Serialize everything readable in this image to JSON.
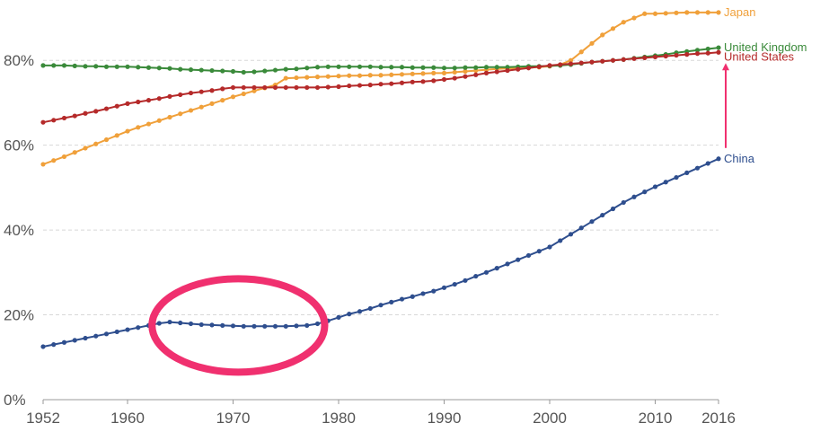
{
  "chart_data": {
    "type": "line",
    "x": [
      1952,
      1953,
      1954,
      1955,
      1956,
      1957,
      1958,
      1959,
      1960,
      1961,
      1962,
      1963,
      1964,
      1965,
      1966,
      1967,
      1968,
      1969,
      1970,
      1971,
      1972,
      1973,
      1974,
      1975,
      1976,
      1977,
      1978,
      1979,
      1980,
      1981,
      1982,
      1983,
      1984,
      1985,
      1986,
      1987,
      1988,
      1989,
      1990,
      1991,
      1992,
      1993,
      1994,
      1995,
      1996,
      1997,
      1998,
      1999,
      2000,
      2001,
      2002,
      2003,
      2004,
      2005,
      2006,
      2007,
      2008,
      2009,
      2010,
      2011,
      2012,
      2013,
      2014,
      2015,
      2016
    ],
    "x_ticks": [
      "1952",
      "1960",
      "1970",
      "1980",
      "1990",
      "2000",
      "2010",
      "2016"
    ],
    "y_ticks": [
      "0%",
      "20%",
      "40%",
      "60%",
      "80%"
    ],
    "ylim": [
      0,
      90
    ],
    "grid": "horizontal dashed",
    "series": [
      {
        "name": "Japan",
        "color": "#f0a03a",
        "values": [
          55.5,
          56.4,
          57.3,
          58.3,
          59.3,
          60.3,
          61.3,
          62.3,
          63.3,
          64.2,
          65.0,
          65.8,
          66.6,
          67.4,
          68.2,
          69.0,
          69.8,
          70.6,
          71.4,
          72.1,
          72.8,
          73.5,
          74.2,
          75.8,
          75.9,
          76.0,
          76.1,
          76.2,
          76.3,
          76.4,
          76.4,
          76.5,
          76.5,
          76.6,
          76.7,
          76.8,
          76.9,
          77.0,
          77.0,
          77.2,
          77.4,
          77.6,
          77.8,
          78.0,
          78.1,
          78.2,
          78.3,
          78.4,
          78.6,
          79.0,
          80.0,
          82.0,
          84.0,
          86.0,
          87.5,
          89.0,
          90.0,
          91.0,
          91.0,
          91.1,
          91.2,
          91.3,
          91.3,
          91.3,
          91.3
        ]
      },
      {
        "name": "United Kingdom",
        "color": "#3a8a3a",
        "values": [
          78.8,
          78.8,
          78.8,
          78.7,
          78.6,
          78.6,
          78.5,
          78.5,
          78.5,
          78.4,
          78.3,
          78.2,
          78.1,
          77.9,
          77.8,
          77.7,
          77.6,
          77.5,
          77.4,
          77.2,
          77.3,
          77.5,
          77.7,
          77.9,
          78.0,
          78.2,
          78.4,
          78.5,
          78.5,
          78.5,
          78.5,
          78.5,
          78.4,
          78.4,
          78.4,
          78.3,
          78.3,
          78.3,
          78.2,
          78.2,
          78.3,
          78.3,
          78.4,
          78.4,
          78.4,
          78.5,
          78.6,
          78.6,
          78.7,
          78.8,
          79.0,
          79.3,
          79.6,
          79.8,
          80.0,
          80.2,
          80.5,
          80.8,
          81.1,
          81.4,
          81.8,
          82.1,
          82.4,
          82.7,
          83.0
        ]
      },
      {
        "name": "United States",
        "color": "#b52a2a",
        "values": [
          65.4,
          65.9,
          66.4,
          66.9,
          67.5,
          68.0,
          68.6,
          69.2,
          69.8,
          70.2,
          70.6,
          71.0,
          71.5,
          71.9,
          72.3,
          72.6,
          72.9,
          73.3,
          73.6,
          73.6,
          73.6,
          73.6,
          73.6,
          73.6,
          73.6,
          73.6,
          73.6,
          73.7,
          73.8,
          74.0,
          74.1,
          74.2,
          74.4,
          74.5,
          74.7,
          74.9,
          75.0,
          75.2,
          75.5,
          75.8,
          76.2,
          76.6,
          77.0,
          77.3,
          77.6,
          77.9,
          78.2,
          78.5,
          78.8,
          79.0,
          79.2,
          79.4,
          79.6,
          79.8,
          80.0,
          80.2,
          80.4,
          80.6,
          80.8,
          81.0,
          81.2,
          81.4,
          81.6,
          81.7,
          81.9
        ]
      },
      {
        "name": "China",
        "color": "#2e4e8e",
        "values": [
          12.5,
          13.0,
          13.5,
          14.0,
          14.5,
          15.0,
          15.5,
          16.0,
          16.5,
          17.0,
          17.5,
          18.0,
          18.3,
          18.1,
          17.9,
          17.7,
          17.6,
          17.5,
          17.4,
          17.3,
          17.3,
          17.3,
          17.3,
          17.3,
          17.4,
          17.5,
          17.9,
          18.6,
          19.4,
          20.2,
          20.8,
          21.5,
          22.3,
          23.0,
          23.7,
          24.3,
          25.0,
          25.6,
          26.4,
          27.2,
          28.1,
          29.1,
          30.0,
          31.0,
          32.0,
          33.0,
          34.0,
          35.0,
          36.0,
          37.5,
          39.0,
          40.5,
          42.0,
          43.5,
          45.0,
          46.5,
          47.8,
          49.0,
          50.2,
          51.3,
          52.4,
          53.5,
          54.6,
          55.7,
          56.8
        ]
      }
    ],
    "annotations": [
      "pink arrow from China label pointing up to United States",
      "pink ellipse around China line 1963-1978"
    ]
  },
  "colors": {
    "annotation": "#f0306f",
    "grid": "#d8d8d8",
    "axis": "#999999"
  }
}
